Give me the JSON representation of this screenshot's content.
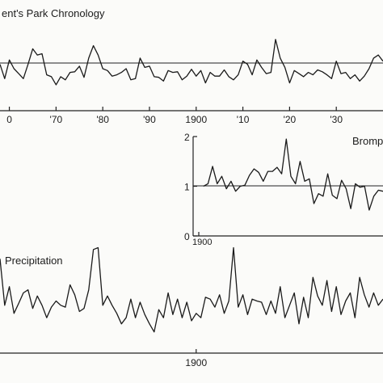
{
  "chart_data": [
    {
      "type": "line",
      "title": "Regent's Park Chronology",
      "title_visible": "ent's Park Chronology",
      "reference_value": 1.0,
      "x_tick_labels": [
        "0",
        "'70",
        "'80",
        "'90",
        "1900",
        "'10",
        "'20",
        "'30"
      ],
      "x_ticks": [
        1860,
        1870,
        1880,
        1890,
        1900,
        1910,
        1920,
        1930
      ],
      "x_range": [
        1858,
        1940
      ],
      "y_range": [
        0.55,
        1.5
      ],
      "series": [
        {
          "x": [
            1858,
            1859,
            1860,
            1861,
            1862,
            1863,
            1864,
            1865,
            1866,
            1867,
            1868,
            1869,
            1870,
            1871,
            1872,
            1873,
            1874,
            1875,
            1876,
            1877,
            1878,
            1879,
            1880,
            1881,
            1882,
            1883,
            1884,
            1885,
            1886,
            1887,
            1888,
            1889,
            1890,
            1891,
            1892,
            1893,
            1894,
            1895,
            1896,
            1897,
            1898,
            1899,
            1900,
            1901,
            1902,
            1903,
            1904,
            1905,
            1906,
            1907,
            1908,
            1909,
            1910,
            1911,
            1912,
            1913,
            1914,
            1915,
            1916,
            1917,
            1918,
            1919,
            1920,
            1921,
            1922,
            1923,
            1924,
            1925,
            1926,
            1927,
            1928,
            1929,
            1930,
            1931,
            1932,
            1933,
            1934,
            1935,
            1936,
            1937,
            1938,
            1939,
            1940
          ],
          "values": [
            1.05,
            0.82,
            1.12,
            0.98,
            0.9,
            0.82,
            1.05,
            1.3,
            1.2,
            1.22,
            0.88,
            0.85,
            0.72,
            0.85,
            0.8,
            0.92,
            0.93,
            1.02,
            0.84,
            1.15,
            1.35,
            1.2,
            0.98,
            0.95,
            0.86,
            0.88,
            0.92,
            0.98,
            0.8,
            0.82,
            1.15,
            1.0,
            1.02,
            0.85,
            0.84,
            0.78,
            0.95,
            0.92,
            0.93,
            0.8,
            0.86,
            0.97,
            0.86,
            0.95,
            0.75,
            0.92,
            0.86,
            0.86,
            0.96,
            0.85,
            0.8,
            0.88,
            1.1,
            1.05,
            0.88,
            1.12,
            1.0,
            0.9,
            0.92,
            1.45,
            1.15,
            1.0,
            0.75,
            0.95,
            0.9,
            0.85,
            0.92,
            0.88,
            0.96,
            0.93,
            0.88,
            0.82,
            1.1,
            0.9,
            0.92,
            0.82,
            0.88,
            0.78,
            0.86,
            0.98,
            1.15,
            1.2,
            1.1
          ]
        }
      ]
    },
    {
      "type": "line",
      "title": "Bromp",
      "reference_value": 1,
      "x_tick_labels": [
        "1900"
      ],
      "x_ticks": [
        1900
      ],
      "x_range": [
        1900,
        1940
      ],
      "y_tick_labels": [
        "2",
        "1",
        "0"
      ],
      "y_ticks": [
        2,
        1,
        0
      ],
      "ylim": [
        0,
        2
      ],
      "series": [
        {
          "x": [
            1901,
            1902,
            1903,
            1904,
            1905,
            1906,
            1907,
            1908,
            1909,
            1910,
            1911,
            1912,
            1913,
            1914,
            1915,
            1916,
            1917,
            1918,
            1919,
            1920,
            1921,
            1922,
            1923,
            1924,
            1925,
            1926,
            1927,
            1928,
            1929,
            1930,
            1931,
            1932,
            1933,
            1934,
            1935,
            1936,
            1937,
            1938,
            1939,
            1940
          ],
          "values": [
            1.0,
            1.05,
            1.4,
            1.05,
            1.2,
            0.95,
            1.1,
            0.9,
            1.0,
            1.02,
            1.22,
            1.35,
            1.28,
            1.1,
            1.3,
            1.3,
            1.38,
            1.25,
            1.95,
            1.2,
            1.05,
            1.5,
            1.1,
            1.15,
            0.65,
            0.85,
            0.8,
            1.25,
            0.82,
            0.75,
            1.12,
            0.95,
            0.55,
            1.05,
            0.98,
            1.0,
            0.52,
            0.8,
            0.92,
            0.9
          ]
        }
      ]
    },
    {
      "type": "line",
      "title": "Precipitation",
      "title_visible": "Precipitation",
      "x_tick_labels": [
        "1900"
      ],
      "x_ticks": [
        1900
      ],
      "x_range": [
        1858,
        1940
      ],
      "y_range": [
        0.2,
        1.7
      ],
      "series": [
        {
          "x": [
            1858,
            1859,
            1860,
            1861,
            1862,
            1863,
            1864,
            1865,
            1866,
            1867,
            1868,
            1869,
            1870,
            1871,
            1872,
            1873,
            1874,
            1875,
            1876,
            1877,
            1878,
            1879,
            1880,
            1881,
            1882,
            1883,
            1884,
            1885,
            1886,
            1887,
            1888,
            1889,
            1890,
            1891,
            1892,
            1893,
            1894,
            1895,
            1896,
            1897,
            1898,
            1899,
            1900,
            1901,
            1902,
            1903,
            1904,
            1905,
            1906,
            1907,
            1908,
            1909,
            1910,
            1911,
            1912,
            1913,
            1914,
            1915,
            1916,
            1917,
            1918,
            1919,
            1920,
            1921,
            1922,
            1923,
            1924,
            1925,
            1926,
            1927,
            1928,
            1929,
            1930,
            1931,
            1932,
            1933,
            1934,
            1935,
            1936,
            1937,
            1938,
            1939,
            1940
          ],
          "values": [
            1.5,
            0.75,
            1.05,
            0.62,
            0.78,
            0.95,
            1.0,
            0.7,
            0.9,
            0.75,
            0.55,
            0.72,
            0.82,
            0.75,
            0.72,
            1.08,
            0.92,
            0.65,
            0.7,
            1.0,
            1.65,
            1.68,
            0.75,
            0.9,
            0.75,
            0.62,
            0.45,
            0.55,
            0.85,
            0.55,
            0.8,
            0.6,
            0.45,
            0.32,
            0.68,
            0.55,
            0.95,
            0.6,
            0.85,
            0.55,
            0.8,
            0.5,
            0.62,
            0.55,
            0.88,
            0.85,
            0.72,
            0.92,
            0.62,
            0.82,
            1.68,
            0.72,
            0.92,
            0.6,
            0.85,
            0.82,
            0.8,
            0.6,
            0.82,
            0.62,
            1.05,
            0.55,
            0.75,
            0.95,
            0.45,
            0.88,
            0.55,
            1.2,
            0.9,
            0.75,
            1.15,
            0.65,
            1.05,
            0.6,
            0.82,
            0.95,
            0.55,
            1.2,
            0.92,
            0.72,
            0.95,
            0.75,
            0.85
          ]
        }
      ]
    }
  ]
}
